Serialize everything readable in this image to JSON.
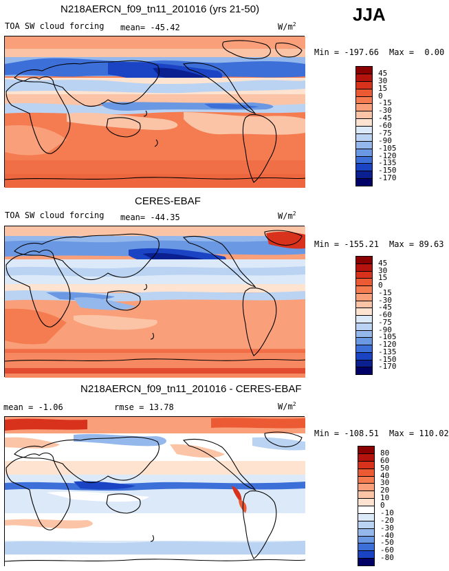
{
  "season": "JJA",
  "panels": [
    {
      "title": "N218AERCN_f09_tn11_201016 (yrs 21-50)",
      "variable": "TOA SW cloud forcing",
      "stat": "mean= -45.42",
      "units_base": "W/m",
      "units_exp": "2",
      "min_label": "Min =",
      "min_value": "-197.66",
      "max_label": "Max =",
      "max_value": "0.00",
      "colorbar_labels": [
        "45",
        "30",
        "15",
        "0",
        "-15",
        "-30",
        "-45",
        "-60",
        "-75",
        "-90",
        "-105",
        "-120",
        "-135",
        "-150",
        "-170"
      ],
      "colorbar_colors": [
        "#8b0000",
        "#b5140e",
        "#d8321c",
        "#ec5a34",
        "#f47c50",
        "#f99f7a",
        "#fcc4a6",
        "#fde3d0",
        "#dce9f8",
        "#bad3f2",
        "#94b8ec",
        "#6a98e2",
        "#3d6fd8",
        "#1a44c4",
        "#0a1f90",
        "#000066"
      ]
    },
    {
      "title": "CERES-EBAF",
      "variable": "TOA SW cloud forcing",
      "stat": "mean= -44.35",
      "units_base": "W/m",
      "units_exp": "2",
      "min_label": "Min =",
      "min_value": "-155.21",
      "max_label": "Max =",
      "max_value": "89.63",
      "colorbar_labels": [
        "45",
        "30",
        "15",
        "0",
        "-15",
        "-30",
        "-45",
        "-60",
        "-75",
        "-90",
        "-105",
        "-120",
        "-135",
        "-150",
        "-170"
      ],
      "colorbar_colors": [
        "#8b0000",
        "#b5140e",
        "#d8321c",
        "#ec5a34",
        "#f47c50",
        "#f99f7a",
        "#fcc4a6",
        "#fde3d0",
        "#dce9f8",
        "#bad3f2",
        "#94b8ec",
        "#6a98e2",
        "#3d6fd8",
        "#1a44c4",
        "#0a1f90",
        "#000066"
      ]
    },
    {
      "title": "N218AERCN_f09_tn11_201016 - CERES-EBAF",
      "variable": "mean = -1.06",
      "stat": "rmse = 13.78",
      "units_base": "W/m",
      "units_exp": "2",
      "min_label": "Min =",
      "min_value": "-108.51",
      "max_label": "Max =",
      "max_value": "110.02",
      "colorbar_labels": [
        "80",
        "60",
        "50",
        "40",
        "30",
        "20",
        "10",
        "0",
        "-10",
        "-20",
        "-30",
        "-40",
        "-50",
        "-60",
        "-80"
      ],
      "colorbar_colors": [
        "#8b0000",
        "#b5140e",
        "#d8321c",
        "#ec5a34",
        "#f47c50",
        "#f99f7a",
        "#fcc4a6",
        "#fde3d0",
        "#ffffff",
        "#dce9f8",
        "#bad3f2",
        "#94b8ec",
        "#6a98e2",
        "#3d6fd8",
        "#1a44c4",
        "#000066"
      ]
    }
  ]
}
